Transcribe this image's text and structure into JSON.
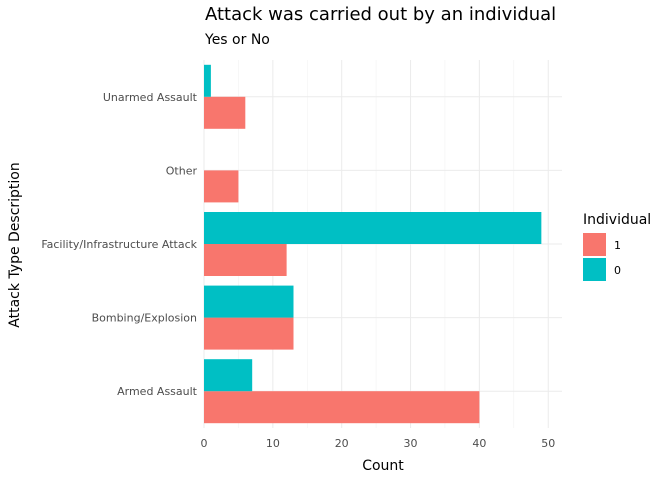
{
  "chart_data": {
    "type": "bar",
    "orientation": "horizontal",
    "title": "Attack was carried out by an individual",
    "subtitle": "Yes or No",
    "xlabel": "Count",
    "ylabel": "Attack Type Description",
    "categories": [
      "Armed Assault",
      "Bombing/Explosion",
      "Facility/Infrastructure Attack",
      "Other",
      "Unarmed Assault"
    ],
    "series": [
      {
        "name": "1",
        "color": "#F8766D",
        "values": [
          40,
          13,
          12,
          5,
          6
        ]
      },
      {
        "name": "0",
        "color": "#00BFC4",
        "values": [
          7,
          13,
          49,
          0,
          1
        ]
      }
    ],
    "xlim": [
      0,
      52
    ],
    "xticks": [
      0,
      10,
      20,
      30,
      40,
      50
    ],
    "grid": true,
    "legend": {
      "title": "Individual",
      "placement": "right"
    }
  }
}
